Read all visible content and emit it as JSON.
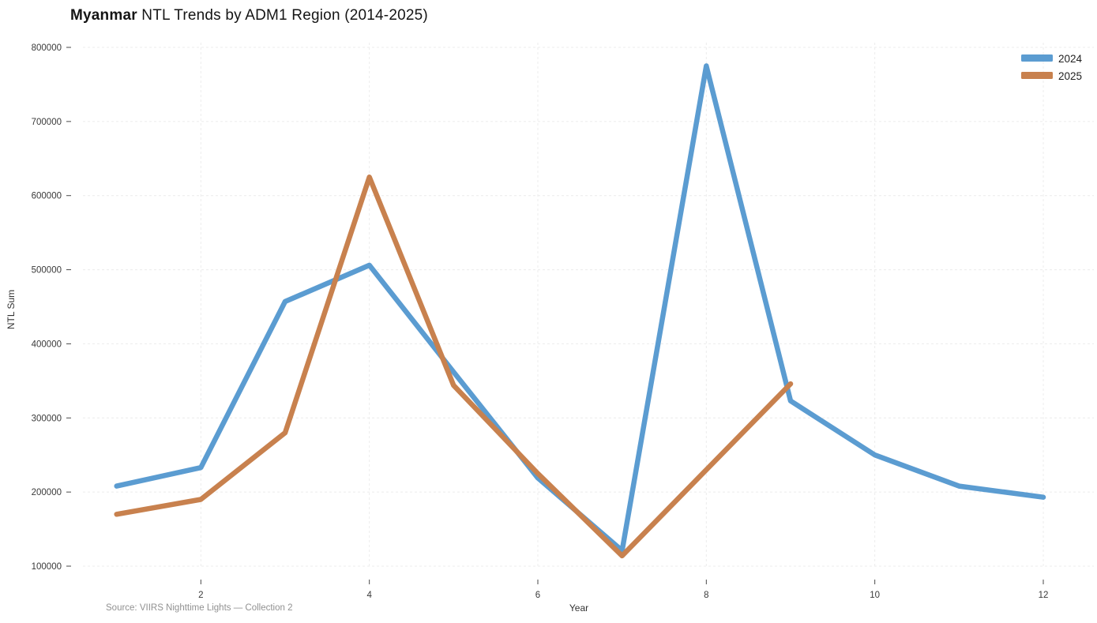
{
  "title": {
    "emphasis": "Myanmar",
    "rest": " NTL Trends by ADM1 Region (2014-2025)"
  },
  "source_note": "Source: VIIRS Nighttime Lights — Collection 2",
  "chart_data": {
    "type": "line",
    "title": "Myanmar NTL Trends by ADM1 Region (2014-2025)",
    "xlabel": "Year",
    "ylabel": "NTL Sum",
    "xlim": [
      0.6,
      12.6
    ],
    "ylim": [
      100000,
      800000
    ],
    "x_ticks": [
      2,
      4,
      6,
      8,
      10,
      12
    ],
    "y_ticks": [
      100000,
      200000,
      300000,
      400000,
      500000,
      600000,
      700000,
      800000
    ],
    "grid": "dashed",
    "legend_position": "top-right",
    "series": [
      {
        "name": "2024",
        "color": "#5b9cd1",
        "x": [
          1,
          2,
          3,
          4,
          5,
          6,
          7,
          8,
          9,
          10,
          11,
          12
        ],
        "y": [
          208000,
          233000,
          457000,
          506000,
          362000,
          219000,
          121000,
          775000,
          323000,
          250000,
          208000,
          193000
        ]
      },
      {
        "name": "2025",
        "color": "#c8814e",
        "x": [
          1,
          2,
          3,
          4,
          5,
          6,
          7,
          8,
          9
        ],
        "y": [
          170000,
          190000,
          280000,
          625000,
          344000,
          225000,
          114000,
          230000,
          346000
        ]
      }
    ]
  }
}
